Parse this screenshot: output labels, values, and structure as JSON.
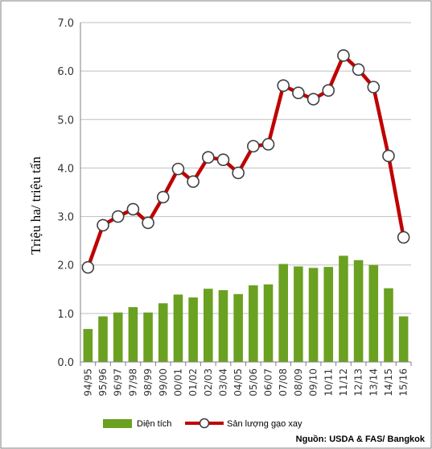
{
  "chart_data": {
    "type": "bar+line",
    "ylabel": "Triệu ha/ triệu tấn",
    "ylim": [
      0,
      7
    ],
    "yticks": [
      "0.0",
      "1.0",
      "2.0",
      "3.0",
      "4.0",
      "5.0",
      "6.0",
      "7.0"
    ],
    "categories": [
      "94/95",
      "95/96",
      "96/97",
      "97/98",
      "98/99",
      "99/00",
      "00/01",
      "01/02",
      "02/03",
      "03/04",
      "04/05",
      "05/06",
      "06/07",
      "07/08",
      "08/09",
      "09/10",
      "10/11",
      "11/12",
      "12/13",
      "13/14",
      "14/15",
      "15/16"
    ],
    "series": [
      {
        "name": "Diện tích",
        "kind": "bar",
        "color": "#6aa121",
        "values": [
          0.68,
          0.94,
          1.02,
          1.13,
          1.02,
          1.21,
          1.39,
          1.33,
          1.51,
          1.48,
          1.4,
          1.58,
          1.6,
          2.02,
          1.97,
          1.94,
          1.96,
          2.19,
          2.1,
          2.0,
          1.52,
          0.94
        ]
      },
      {
        "name": "Sản lượng gạo xay",
        "kind": "line",
        "color": "#c00000",
        "values": [
          1.95,
          2.82,
          3.0,
          3.15,
          2.87,
          3.4,
          3.98,
          3.72,
          4.22,
          4.17,
          3.9,
          4.45,
          4.49,
          5.7,
          5.55,
          5.42,
          5.6,
          6.32,
          6.03,
          5.67,
          4.25,
          2.57
        ]
      }
    ],
    "grid": true,
    "legend_position": "bottom",
    "source": "Nguồn: USDA & FAS/ Bangkok"
  }
}
